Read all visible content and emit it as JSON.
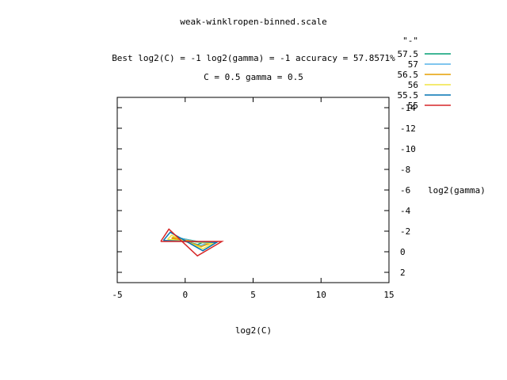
{
  "chart_data": {
    "type": "contour",
    "title": "weak-winklropen-binned.scale",
    "subtitle_lines": [
      "Best log2(C) = -1  log2(gamma) = -1  accuracy = 57.8571%",
      "C = 0.5  gamma = 0.5"
    ],
    "xlabel": "log2(C)",
    "ylabel": "log2(gamma)",
    "xlim": [
      -5,
      15
    ],
    "ylim": [
      3,
      -15
    ],
    "x_ticks": [
      -5,
      0,
      5,
      10,
      15
    ],
    "y_ticks": [
      2,
      0,
      -2,
      -4,
      -6,
      -8,
      -10,
      -12,
      -14
    ],
    "y_tick_labels": [
      "2",
      "0",
      "-2",
      "-4",
      "-6",
      "-8",
      "-10",
      "-12",
      "-14"
    ],
    "legend_title": "\"-\"",
    "legend_position": "top-right",
    "series": [
      {
        "name": "57.5",
        "color": "#009e73",
        "x": [
          -0.3,
          1.3,
          0.9,
          -0.2,
          -0.3
        ],
        "y": [
          -1.3,
          -0.9,
          -0.7,
          -1.1,
          -1.3
        ]
      },
      {
        "name": "57",
        "color": "#56b4e9",
        "x": [
          -0.7,
          1.6,
          1.1,
          -0.6,
          -0.7
        ],
        "y": [
          -1.4,
          -0.8,
          -0.6,
          -1.2,
          -1.4
        ]
      },
      {
        "name": "56.5",
        "color": "#e69f00",
        "x": [
          -1.0,
          1.8,
          1.2,
          -0.9,
          -1.0
        ],
        "y": [
          -1.3,
          -0.8,
          -0.5,
          -1.4,
          -1.3
        ]
      },
      {
        "name": "56",
        "color": "#f0e442",
        "x": [
          -1.3,
          2.0,
          1.3,
          -1.0,
          -1.3
        ],
        "y": [
          -1.2,
          -0.8,
          -0.3,
          -1.6,
          -1.2
        ]
      },
      {
        "name": "55.5",
        "color": "#0072b2",
        "x": [
          -1.6,
          2.3,
          1.3,
          -1.1,
          -1.6
        ],
        "y": [
          -1.1,
          -0.9,
          -0.1,
          -1.9,
          -1.1
        ]
      },
      {
        "name": "55",
        "color": "#d62728",
        "x": [
          -1.8,
          2.7,
          0.9,
          -1.2,
          -1.8
        ],
        "y": [
          -1.0,
          -1.0,
          0.4,
          -2.2,
          -1.0
        ]
      }
    ]
  }
}
